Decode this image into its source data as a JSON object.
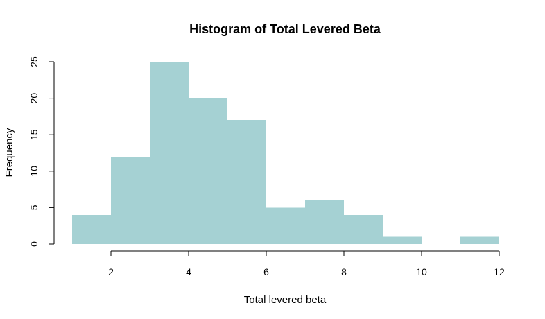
{
  "chart_data": {
    "type": "bar",
    "title": "Histogram of Total Levered Beta",
    "xlabel": "Total levered beta",
    "ylabel": "Frequency",
    "bin_edges": [
      1,
      2,
      3,
      4,
      5,
      6,
      7,
      8,
      9,
      10,
      11,
      12
    ],
    "values": [
      4,
      12,
      25,
      20,
      17,
      5,
      6,
      4,
      1,
      0,
      1
    ],
    "xlim": [
      1,
      12
    ],
    "ylim": [
      0,
      25
    ],
    "x_ticks": [
      "2",
      "4",
      "6",
      "8",
      "10",
      "12"
    ],
    "y_ticks": [
      "0",
      "5",
      "10",
      "15",
      "20",
      "25"
    ],
    "bar_color": "#a5d1d3",
    "grid": false
  }
}
